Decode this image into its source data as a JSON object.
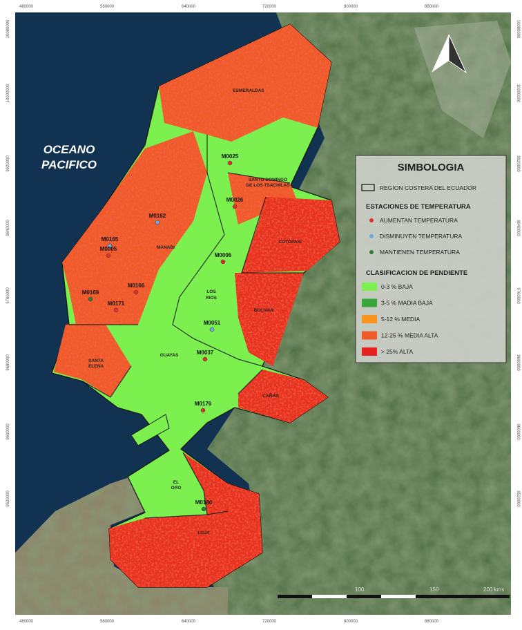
{
  "map": {
    "x_labels": [
      "480000",
      "560000",
      "640000",
      "720000",
      "800000",
      "880000"
    ],
    "y_labels": [
      "10080000",
      "10000000",
      "9920000",
      "9840000",
      "9760000",
      "9680000",
      "9600000",
      "9520000"
    ],
    "ocean_label": [
      "OCEANO",
      "PACIFICO"
    ],
    "provinces": [
      "ESMERALDAS",
      "SANTO DOMINGO",
      "DE LOS TSACHILAS",
      "MANABI",
      "COTOPAXI",
      "LOS",
      "RIOS",
      "BOLIVAR",
      "GUAYAS",
      "SANTA",
      "ELENA",
      "CAÑAR",
      "EL",
      "ORO",
      "LOJA"
    ],
    "stations": [
      {
        "code": "M0025",
        "group": 0
      },
      {
        "code": "M0026",
        "group": 0
      },
      {
        "code": "M0162",
        "group": 1
      },
      {
        "code": "M0165",
        "group": 1
      },
      {
        "code": "M0005",
        "group": 0
      },
      {
        "code": "M0006",
        "group": 0
      },
      {
        "code": "M0166",
        "group": 0
      },
      {
        "code": "M0169",
        "group": 2
      },
      {
        "code": "M0171",
        "group": 0
      },
      {
        "code": "M0051",
        "group": 1
      },
      {
        "code": "M0037",
        "group": 0
      },
      {
        "code": "M0176",
        "group": 0
      },
      {
        "code": "M0180",
        "group": 2
      }
    ]
  },
  "legend": {
    "title": "SIMBOLOGIA",
    "region": "REGION COSTERA DEL ECUADOR",
    "stations_title": "ESTACIONES DE TEMPERATURA",
    "station_groups": [
      {
        "label": "AUMENTAN TEMPERATURA",
        "color": "#e0302a"
      },
      {
        "label": "DISMINUYEN TEMPERATURA",
        "color": "#6fa8dc"
      },
      {
        "label": "MANTIENEN TEMPERATURA",
        "color": "#2e7d32"
      }
    ],
    "slope_title": "CLASIFICACION DE PENDIENTE",
    "slope_classes": [
      {
        "label": "0-3 % BAJA",
        "color": "#7cf04f"
      },
      {
        "label": "3-5 % MADIA BAJA",
        "color": "#3aa63a"
      },
      {
        "label": "5-12 % MEDIA",
        "color": "#f7931e"
      },
      {
        "label": "12-25 % MEDIA ALTA",
        "color": "#f05a28"
      },
      {
        "label": "> 25% ALTA",
        "color": "#e8201e"
      }
    ]
  },
  "scale_labels": [
    "100",
    "150",
    "200 kms"
  ]
}
